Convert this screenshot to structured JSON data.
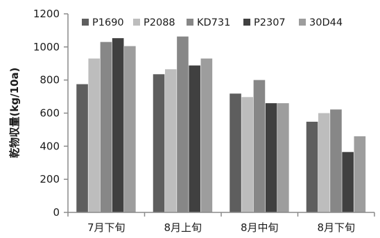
{
  "chart_data": {
    "type": "bar",
    "ylabel": "乾物収量(kg/10a)",
    "xlabel": "",
    "ylim": [
      0,
      1200
    ],
    "yticks": [
      0,
      200,
      400,
      600,
      800,
      1000,
      1200
    ],
    "grid": false,
    "legend_position": "top",
    "categories": [
      "7月下旬",
      "8月上旬",
      "8月中旬",
      "8月下旬"
    ],
    "series": [
      {
        "name": "P1690",
        "color": "#5e5e5e",
        "values": [
          775,
          835,
          718,
          548
        ]
      },
      {
        "name": "P2088",
        "color": "#bdbdbd",
        "values": [
          930,
          865,
          697,
          600
        ]
      },
      {
        "name": "KD731",
        "color": "#878787",
        "values": [
          1030,
          1063,
          800,
          622
        ]
      },
      {
        "name": "P2307",
        "color": "#404040",
        "values": [
          1053,
          888,
          660,
          365
        ]
      },
      {
        "name": "30D44",
        "color": "#9d9d9d",
        "values": [
          1005,
          930,
          660,
          460
        ]
      }
    ]
  }
}
